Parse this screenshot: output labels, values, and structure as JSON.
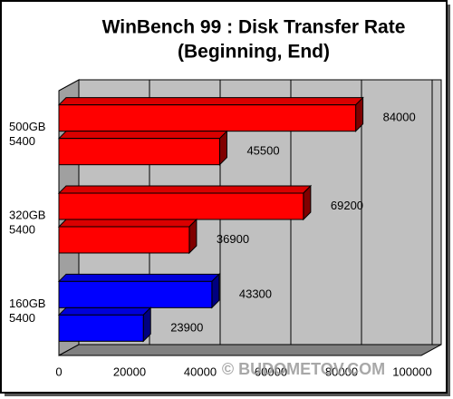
{
  "chart_data": {
    "type": "bar",
    "orientation": "horizontal",
    "title": "WinBench 99 : Disk Transfer Rate",
    "subtitle": "(Beginning, End)",
    "categories": [
      [
        "500GB",
        "5400"
      ],
      [
        "320GB",
        "5400"
      ],
      [
        "160GB",
        "5400"
      ]
    ],
    "category_colors": [
      "#ff0000",
      "#ff0000",
      "#0000ff"
    ],
    "series": [
      {
        "values": [
          84000,
          69200,
          43300
        ]
      },
      {
        "values": [
          45500,
          36900,
          23900
        ]
      }
    ],
    "xlim": [
      0,
      100000
    ],
    "xticks": [
      0,
      20000,
      40000,
      60000,
      80000,
      100000
    ],
    "grid": true,
    "watermark": "© BUDOMETOV.COM"
  }
}
